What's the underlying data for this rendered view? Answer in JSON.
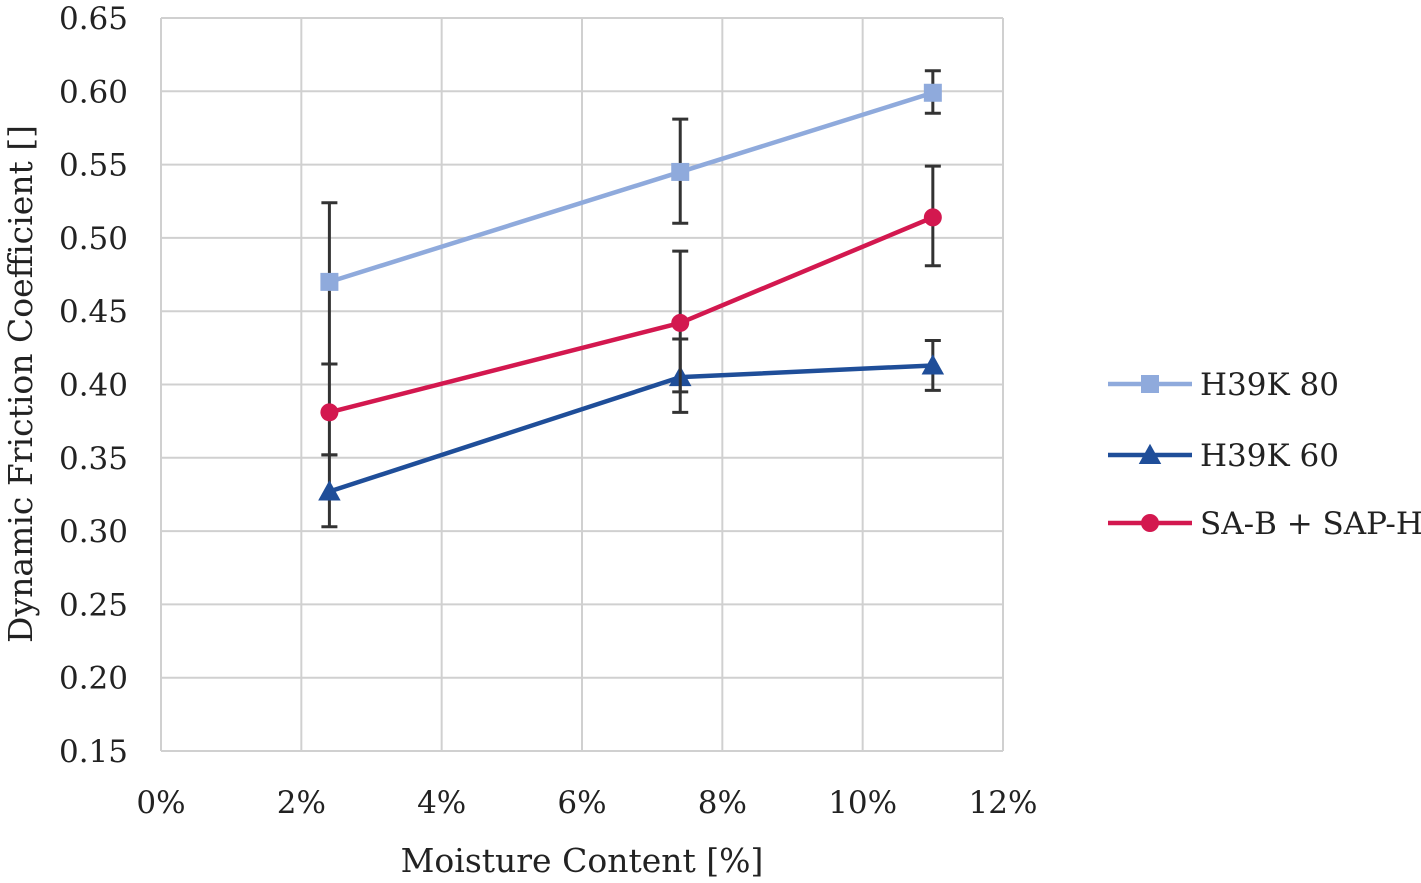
{
  "chart_data": {
    "type": "line",
    "xlabel": "Moisture Content [%]",
    "ylabel": "Dynamic Friction Coefficient []",
    "xlim": [
      0,
      12
    ],
    "ylim": [
      0.15,
      0.65
    ],
    "x_ticks": [
      0,
      2,
      4,
      6,
      8,
      10,
      12
    ],
    "x_tick_labels": [
      "0%",
      "2%",
      "4%",
      "6%",
      "8%",
      "10%",
      "12%"
    ],
    "y_ticks": [
      0.15,
      0.2,
      0.25,
      0.3,
      0.35,
      0.4,
      0.45,
      0.5,
      0.55,
      0.6,
      0.65
    ],
    "y_tick_labels": [
      "0.15",
      "0.20",
      "0.25",
      "0.30",
      "0.35",
      "0.40",
      "0.45",
      "0.50",
      "0.55",
      "0.60",
      "0.65"
    ],
    "grid": true,
    "legend_position": "right",
    "x": [
      2.4,
      7.4,
      11.0
    ],
    "series": [
      {
        "name": "H39K 80",
        "marker": "square",
        "color": "#8faadc",
        "values": [
          0.47,
          0.545,
          0.599
        ],
        "error": [
          [
            0.414,
            0.524
          ],
          [
            0.51,
            0.581
          ],
          [
            0.585,
            0.614
          ]
        ]
      },
      {
        "name": "H39K 60",
        "marker": "triangle",
        "color": "#1f4e99",
        "values": [
          0.327,
          0.405,
          0.413
        ],
        "error": [
          [
            0.303,
            0.352
          ],
          [
            0.381,
            0.431
          ],
          [
            0.396,
            0.43
          ]
        ]
      },
      {
        "name": "SA-B + SAP-H",
        "marker": "circle",
        "color": "#d3184f",
        "values": [
          0.381,
          0.442,
          0.514
        ],
        "error": [
          [
            0.352,
            0.414
          ],
          [
            0.395,
            0.491
          ],
          [
            0.481,
            0.549
          ]
        ]
      }
    ],
    "error_bar_color": "#333333"
  }
}
